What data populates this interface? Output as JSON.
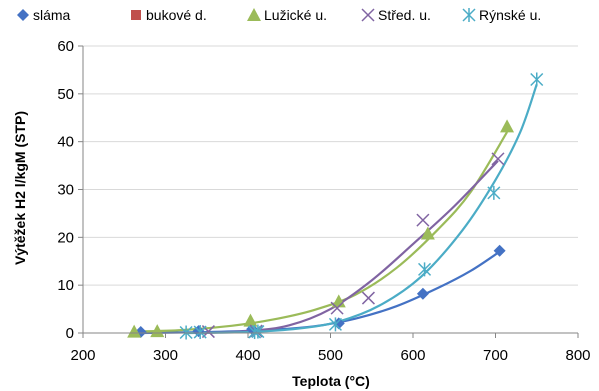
{
  "chart_data": {
    "type": "scatter",
    "xlabel": "Teplota (°C)",
    "ylabel": "Výtěžek H2 l/kgM (STP)",
    "xlim": [
      200,
      800
    ],
    "ylim": [
      0,
      60
    ],
    "x_ticks": [
      200,
      300,
      400,
      500,
      600,
      700,
      800
    ],
    "y_ticks": [
      0,
      10,
      20,
      30,
      40,
      50,
      60
    ],
    "grid": "horizontal",
    "legend_position": "top",
    "series": [
      {
        "name": "sláma",
        "marker": "diamond",
        "color": "#4472c4",
        "points": [
          [
            270,
            0.2
          ],
          [
            340,
            0.4
          ],
          [
            405,
            0.8
          ],
          [
            510,
            2.0
          ],
          [
            612,
            8.2
          ],
          [
            705,
            17.2
          ]
        ],
        "trend": [
          [
            270,
            0.0
          ],
          [
            350,
            0.2
          ],
          [
            420,
            0.6
          ],
          [
            480,
            1.4
          ],
          [
            530,
            3.0
          ],
          [
            580,
            5.6
          ],
          [
            630,
            9.4
          ],
          [
            670,
            13.0
          ],
          [
            705,
            17.0
          ]
        ]
      },
      {
        "name": "bukové d.",
        "marker": "square",
        "color": "#c0504d",
        "points": [],
        "trend": []
      },
      {
        "name": "Lužické u.",
        "marker": "triangle",
        "color": "#9bbb59",
        "points": [
          [
            262,
            0.3
          ],
          [
            290,
            0.4
          ],
          [
            403,
            2.6
          ],
          [
            510,
            6.6
          ],
          [
            618,
            20.8
          ],
          [
            714,
            43.2
          ]
        ],
        "trend": [
          [
            262,
            0.3
          ],
          [
            320,
            0.6
          ],
          [
            380,
            1.5
          ],
          [
            430,
            2.8
          ],
          [
            480,
            4.8
          ],
          [
            530,
            8.0
          ],
          [
            580,
            13.6
          ],
          [
            630,
            21.6
          ],
          [
            670,
            29.5
          ],
          [
            714,
            42.0
          ]
        ]
      },
      {
        "name": "Střed. u.",
        "marker": "x",
        "color": "#8064a2",
        "points": [
          [
            352,
            0.3
          ],
          [
            410,
            0.4
          ],
          [
            508,
            5.2
          ],
          [
            546,
            7.3
          ],
          [
            612,
            23.6
          ],
          [
            703,
            36.4
          ]
        ],
        "trend": [
          [
            340,
            0.0
          ],
          [
            400,
            0.4
          ],
          [
            450,
            1.6
          ],
          [
            500,
            5.0
          ],
          [
            550,
            11.0
          ],
          [
            600,
            18.6
          ],
          [
            650,
            26.5
          ],
          [
            703,
            36.0
          ]
        ]
      },
      {
        "name": "Rýnské u.",
        "marker": "asterisk",
        "color": "#4bacc6",
        "points": [
          [
            325,
            0.1
          ],
          [
            342,
            0.2
          ],
          [
            408,
            0.2
          ],
          [
            412,
            0.3
          ],
          [
            506,
            1.8
          ],
          [
            614,
            13.3
          ],
          [
            698,
            29.3
          ],
          [
            750,
            53.0
          ]
        ],
        "trend": [
          [
            325,
            0.0
          ],
          [
            400,
            0.2
          ],
          [
            460,
            0.9
          ],
          [
            510,
            2.4
          ],
          [
            560,
            5.8
          ],
          [
            610,
            11.8
          ],
          [
            660,
            21.5
          ],
          [
            700,
            32.0
          ],
          [
            730,
            42.0
          ],
          [
            750,
            52.0
          ]
        ]
      }
    ]
  }
}
